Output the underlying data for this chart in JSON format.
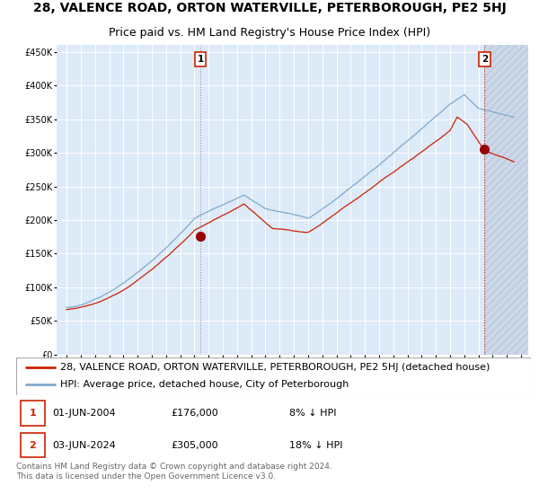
{
  "title_line1": "28, VALENCE ROAD, ORTON WATERVILLE, PETERBOROUGH, PE2 5HJ",
  "title_line2": "Price paid vs. HM Land Registry's House Price Index (HPI)",
  "legend_line1": "28, VALENCE ROAD, ORTON WATERVILLE, PETERBOROUGH, PE2 5HJ (detached house)",
  "legend_line2": "HPI: Average price, detached house, City of Peterborough",
  "note1_num": "1",
  "note1_date": "01-JUN-2004",
  "note1_price": "£176,000",
  "note1_hpi": "8% ↓ HPI",
  "note2_num": "2",
  "note2_date": "03-JUN-2024",
  "note2_price": "£305,000",
  "note2_hpi": "18% ↓ HPI",
  "footer": "Contains HM Land Registry data © Crown copyright and database right 2024.\nThis data is licensed under the Open Government Licence v3.0.",
  "hpi_color": "#7eaacc",
  "price_color": "#cc2200",
  "marker_color": "#990000",
  "bg_color": "#ddeaf7",
  "grid_color": "#ffffff",
  "vline1_color": "#aaaacc",
  "vline2_color": "#cc2200",
  "box_color": "#cc2200",
  "ylim": [
    0,
    460000
  ],
  "yticks": [
    0,
    50000,
    100000,
    150000,
    200000,
    250000,
    300000,
    350000,
    400000,
    450000
  ],
  "sale1_year": 2004.42,
  "sale1_price": 176000,
  "sale2_year": 2024.42,
  "sale2_price": 305000,
  "title_fontsize": 10,
  "subtitle_fontsize": 9,
  "legend_fontsize": 8,
  "annotation_fontsize": 8,
  "tick_fontsize": 7,
  "footer_fontsize": 6.5
}
